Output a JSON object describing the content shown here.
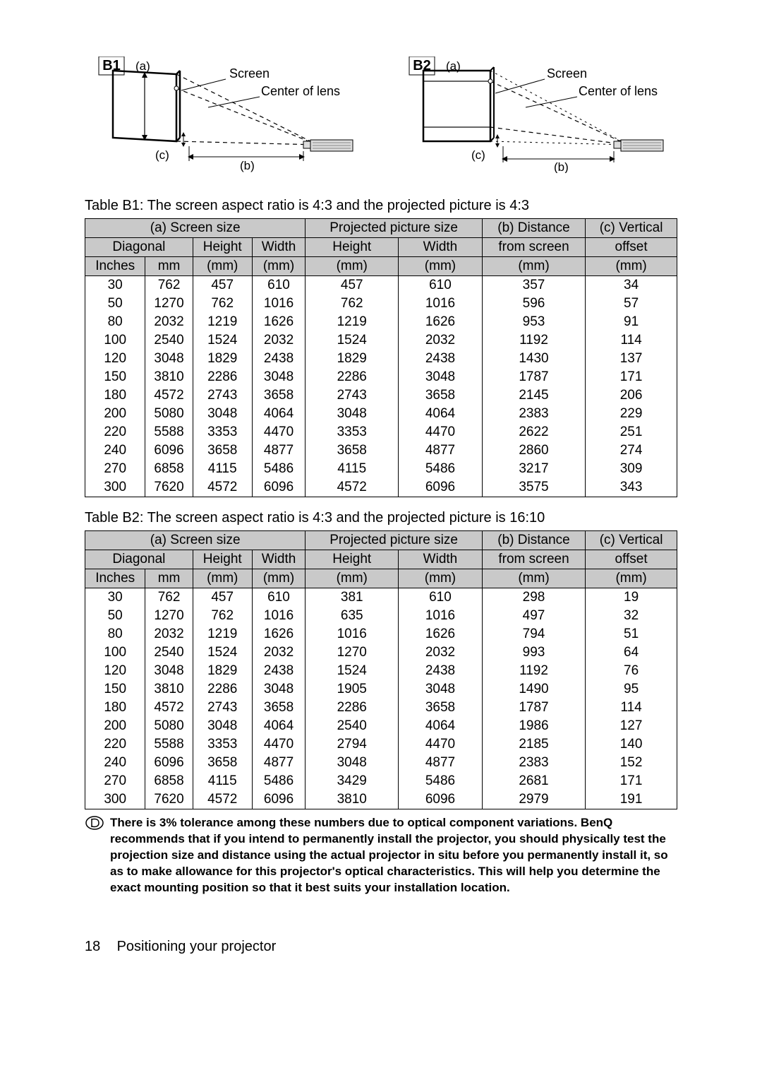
{
  "diagram_b1": {
    "badge": "B1",
    "label_a": "(a)",
    "label_b": "(b)",
    "label_c": "(c)",
    "label_screen": "Screen",
    "label_center": "Center of lens"
  },
  "diagram_b2": {
    "badge": "B2",
    "label_a": "(a)",
    "label_b": "(b)",
    "label_c": "(c)",
    "label_screen": "Screen",
    "label_center": "Center of lens"
  },
  "table_b1": {
    "caption": "Table B1: The screen aspect ratio is 4:3 and the projected picture is 4:3",
    "h_screen_size": "(a) Screen size",
    "h_projected": "Projected picture size",
    "h_distance": "(b) Distance",
    "h_vertical": "(c) Vertical",
    "h_diagonal": "Diagonal",
    "h_height": "Height",
    "h_width": "Width",
    "h_from_screen": "from screen",
    "h_offset": "offset",
    "h_inches": "Inches",
    "h_mm": "mm",
    "h_mm_p": "(mm)",
    "rows": [
      [
        "30",
        "762",
        "457",
        "610",
        "457",
        "610",
        "357",
        "34"
      ],
      [
        "50",
        "1270",
        "762",
        "1016",
        "762",
        "1016",
        "596",
        "57"
      ],
      [
        "80",
        "2032",
        "1219",
        "1626",
        "1219",
        "1626",
        "953",
        "91"
      ],
      [
        "100",
        "2540",
        "1524",
        "2032",
        "1524",
        "2032",
        "1192",
        "114"
      ],
      [
        "120",
        "3048",
        "1829",
        "2438",
        "1829",
        "2438",
        "1430",
        "137"
      ],
      [
        "150",
        "3810",
        "2286",
        "3048",
        "2286",
        "3048",
        "1787",
        "171"
      ],
      [
        "180",
        "4572",
        "2743",
        "3658",
        "2743",
        "3658",
        "2145",
        "206"
      ],
      [
        "200",
        "5080",
        "3048",
        "4064",
        "3048",
        "4064",
        "2383",
        "229"
      ],
      [
        "220",
        "5588",
        "3353",
        "4470",
        "3353",
        "4470",
        "2622",
        "251"
      ],
      [
        "240",
        "6096",
        "3658",
        "4877",
        "3658",
        "4877",
        "2860",
        "274"
      ],
      [
        "270",
        "6858",
        "4115",
        "5486",
        "4115",
        "5486",
        "3217",
        "309"
      ],
      [
        "300",
        "7620",
        "4572",
        "6096",
        "4572",
        "6096",
        "3575",
        "343"
      ]
    ]
  },
  "table_b2": {
    "caption": "Table B2: The screen aspect ratio is 4:3 and the projected picture is 16:10",
    "h_screen_size": "(a) Screen size",
    "h_projected": "Projected picture size",
    "h_distance": "(b) Distance",
    "h_vertical": "(c) Vertical",
    "h_diagonal": "Diagonal",
    "h_height": "Height",
    "h_width": "Width",
    "h_from_screen": "from screen",
    "h_offset": "offset",
    "h_inches": "Inches",
    "h_mm": "mm",
    "h_mm_p": "(mm)",
    "rows": [
      [
        "30",
        "762",
        "457",
        "610",
        "381",
        "610",
        "298",
        "19"
      ],
      [
        "50",
        "1270",
        "762",
        "1016",
        "635",
        "1016",
        "497",
        "32"
      ],
      [
        "80",
        "2032",
        "1219",
        "1626",
        "1016",
        "1626",
        "794",
        "51"
      ],
      [
        "100",
        "2540",
        "1524",
        "2032",
        "1270",
        "2032",
        "993",
        "64"
      ],
      [
        "120",
        "3048",
        "1829",
        "2438",
        "1524",
        "2438",
        "1192",
        "76"
      ],
      [
        "150",
        "3810",
        "2286",
        "3048",
        "1905",
        "3048",
        "1490",
        "95"
      ],
      [
        "180",
        "4572",
        "2743",
        "3658",
        "2286",
        "3658",
        "1787",
        "114"
      ],
      [
        "200",
        "5080",
        "3048",
        "4064",
        "2540",
        "4064",
        "1986",
        "127"
      ],
      [
        "220",
        "5588",
        "3353",
        "4470",
        "2794",
        "4470",
        "2185",
        "140"
      ],
      [
        "240",
        "6096",
        "3658",
        "4877",
        "3048",
        "4877",
        "2383",
        "152"
      ],
      [
        "270",
        "6858",
        "4115",
        "5486",
        "3429",
        "5486",
        "2681",
        "171"
      ],
      [
        "300",
        "7620",
        "4572",
        "6096",
        "3810",
        "6096",
        "2979",
        "191"
      ]
    ]
  },
  "note": "There is 3% tolerance among these numbers due to optical component variations. BenQ recommends that if you intend to permanently install the projector, you should physically test the projection size and distance using the actual projector in situ before you permanently install it, so as to make allowance for this projector's optical characteristics. This will help you determine the exact mounting position so that it best suits your installation location.",
  "footer": {
    "page": "18",
    "title": "Positioning your projector"
  }
}
